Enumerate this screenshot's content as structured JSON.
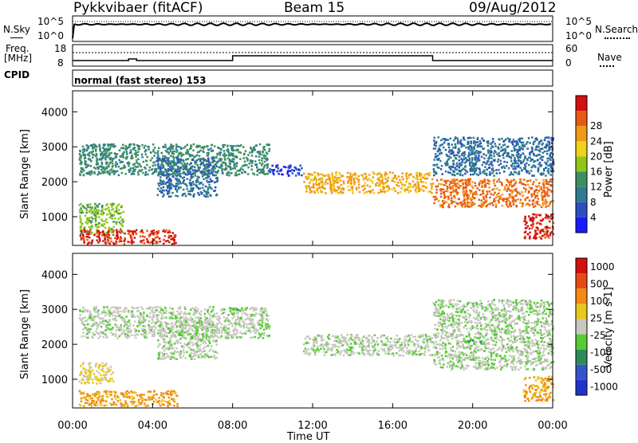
{
  "header": {
    "station": "Pykkvibaer (fitACF)",
    "beam": "Beam 15",
    "date": "09/Aug/2012"
  },
  "sky_panel": {
    "left_label": "N.Sky",
    "right_label": "N.Search",
    "left_ticks": [
      "10^5",
      "10^0"
    ],
    "right_ticks": [
      "10^5",
      "10^0"
    ]
  },
  "freq_panel": {
    "label_line1": "Freq.",
    "label_line2": "[MHz]",
    "left_ticks": [
      "18",
      "8"
    ],
    "right_ticks": [
      "60",
      "0"
    ],
    "right_label": "Nave"
  },
  "cpid": {
    "label": "CPID",
    "mode": "normal (fast stereo) 153"
  },
  "colors": {
    "power": [
      "#1a1aff",
      "#2a4fc0",
      "#2f7a8f",
      "#3d8f63",
      "#90c61a",
      "#f0d21a",
      "#f09a14",
      "#e85a14",
      "#d40f0f"
    ],
    "velocity": [
      "#2233cc",
      "#3355cc",
      "#2f8a5a",
      "#55cc33",
      "#c8c8c0",
      "#e8c81a",
      "#f28a14",
      "#e84a14",
      "#d40f0f"
    ]
  },
  "chart_data": [
    {
      "type": "heatmap",
      "name": "power",
      "ylabel": "Slant Range [km]",
      "xlabel": "",
      "x_ticks": [
        "00:00",
        "04:00",
        "08:00",
        "12:00",
        "16:00",
        "20:00",
        "00:00"
      ],
      "y_ticks": [
        1000,
        2000,
        3000,
        4000
      ],
      "ylim": [
        180,
        4600
      ],
      "xlim_hours": [
        0,
        24
      ],
      "colorbar_label": "Power [dB]",
      "colorbar_ticks": [
        4,
        8,
        12,
        16,
        20,
        24,
        28
      ],
      "bands": [
        {
          "x0": 0.3,
          "x1": 9.8,
          "y0": 2200,
          "y1": 3100,
          "level": 3
        },
        {
          "x0": 4.2,
          "x1": 7.2,
          "y0": 1600,
          "y1": 2700,
          "level": 2
        },
        {
          "x0": 9.8,
          "x1": 11.5,
          "y0": 2200,
          "y1": 2500,
          "level": 1
        },
        {
          "x0": 11.5,
          "x1": 18.0,
          "y0": 1700,
          "y1": 2300,
          "level": 6
        },
        {
          "x0": 18.0,
          "x1": 24.0,
          "y0": 1300,
          "y1": 2100,
          "level": 7
        },
        {
          "x0": 18.0,
          "x1": 24.0,
          "y0": 2200,
          "y1": 3300,
          "level": 2
        },
        {
          "x0": 0.3,
          "x1": 2.5,
          "y0": 500,
          "y1": 1400,
          "level": 4
        },
        {
          "x0": 0.3,
          "x1": 5.2,
          "y0": 250,
          "y1": 650,
          "level": 8
        },
        {
          "x0": 22.5,
          "x1": 24.0,
          "y0": 400,
          "y1": 1100,
          "level": 8
        }
      ]
    },
    {
      "type": "heatmap",
      "name": "velocity",
      "ylabel": "Slant Range [km]",
      "xlabel": "Time UT",
      "x_ticks": [
        "00:00",
        "04:00",
        "08:00",
        "12:00",
        "16:00",
        "20:00",
        "00:00"
      ],
      "y_ticks": [
        1000,
        2000,
        3000,
        4000
      ],
      "ylim": [
        180,
        4600
      ],
      "xlim_hours": [
        0,
        24
      ],
      "colorbar_label": "Velocity [m s-1]",
      "colorbar_ticks": [
        "1000",
        "500",
        "100",
        "25",
        "-25",
        "-100",
        "-500",
        "-1000"
      ],
      "bands": [
        {
          "x0": 0.3,
          "x1": 9.8,
          "y0": 2200,
          "y1": 3100,
          "level": 4
        },
        {
          "x0": 4.2,
          "x1": 7.2,
          "y0": 1600,
          "y1": 2700,
          "level": 4
        },
        {
          "x0": 11.5,
          "x1": 18.0,
          "y0": 1700,
          "y1": 2300,
          "level": 4
        },
        {
          "x0": 18.0,
          "x1": 24.0,
          "y0": 1300,
          "y1": 3300,
          "level": 4
        },
        {
          "x0": 7.8,
          "x1": 8.4,
          "y0": 2900,
          "y1": 3100,
          "level": 3
        },
        {
          "x0": 19.6,
          "x1": 20.4,
          "y0": 2050,
          "y1": 2250,
          "level": 3
        },
        {
          "x0": 0.3,
          "x1": 2.0,
          "y0": 900,
          "y1": 1500,
          "level": 5
        },
        {
          "x0": 0.3,
          "x1": 5.2,
          "y0": 250,
          "y1": 700,
          "level": 6
        },
        {
          "x0": 22.5,
          "x1": 24.0,
          "y0": 400,
          "y1": 1100,
          "level": 6
        }
      ]
    }
  ]
}
